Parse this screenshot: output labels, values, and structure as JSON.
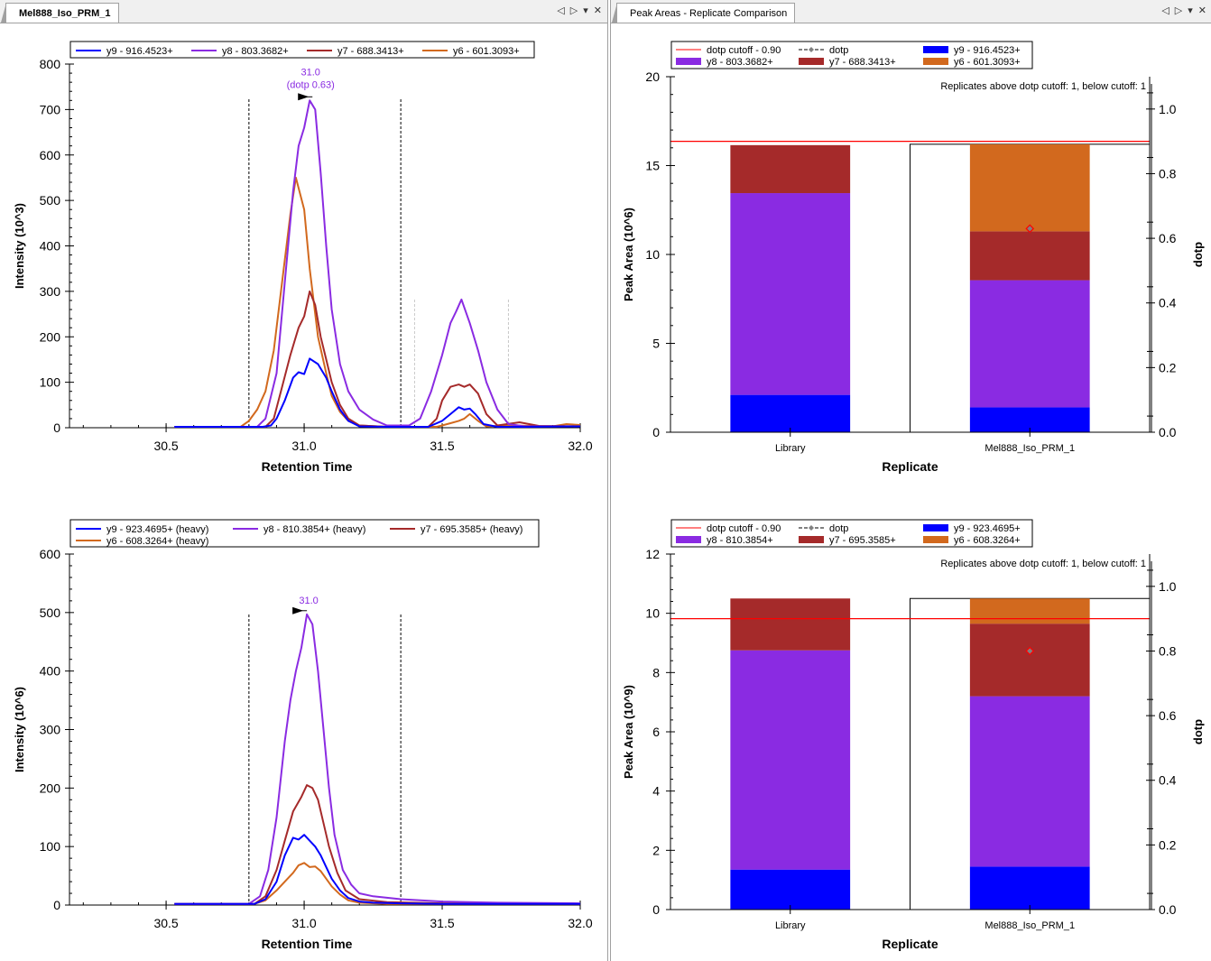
{
  "panes": {
    "left": {
      "tab_label": "Mel888_Iso_PRM_1",
      "controls": {
        "prev": "◁",
        "next": "▷",
        "menu": "▾",
        "close": "✕"
      }
    },
    "right": {
      "tab_label": "Peak Areas - Replicate Comparison",
      "controls": {
        "prev": "◁",
        "next": "▷",
        "menu": "▾",
        "close": "✕"
      }
    }
  },
  "colors": {
    "y9": "#0000ff",
    "y8": "#8a2be2",
    "y7": "#a52a2a",
    "y6": "#d2691e",
    "cutoff": "#ff0000",
    "dotp": "#808080"
  },
  "chart_data": [
    {
      "id": "chrom-light",
      "type": "line",
      "title": "",
      "xlabel": "Retention Time",
      "ylabel": "Intensity (10^3)",
      "xlim": [
        30.15,
        32.0
      ],
      "ylim": [
        0,
        800
      ],
      "xticks": [
        30.5,
        31.0,
        31.5,
        32.0
      ],
      "xtick_labels": [
        "30.5",
        "31.0",
        "31.5",
        "32.0"
      ],
      "yticks": [
        0,
        100,
        200,
        300,
        400,
        500,
        600,
        700,
        800
      ],
      "ytick_labels": [
        "0",
        "100",
        "200",
        "300",
        "400",
        "500",
        "600",
        "700",
        "800"
      ],
      "legend": [
        "y9 - 916.4523+",
        "y8 - 803.3682+",
        "y7 - 688.3413+",
        "y6 - 601.3093+"
      ],
      "legend_placement": "top",
      "peak_annotation": {
        "text1": "31.0",
        "text2": "(dotp 0.63)",
        "x": 31.03,
        "y": 720
      },
      "boundaries": [
        30.8,
        31.35
      ],
      "secondary_boundaries": [
        31.4,
        31.74
      ],
      "series": [
        {
          "name": "y9 - 916.4523+",
          "color_key": "y9",
          "x": [
            30.53,
            30.85,
            30.88,
            30.9,
            30.93,
            30.96,
            30.98,
            31.0,
            31.02,
            31.05,
            31.08,
            31.1,
            31.13,
            31.16,
            31.2,
            31.3,
            31.45,
            31.5,
            31.53,
            31.56,
            31.58,
            31.6,
            31.62,
            31.65,
            31.7,
            31.8,
            32.0
          ],
          "y": [
            2,
            2,
            5,
            20,
            60,
            110,
            122,
            118,
            152,
            140,
            110,
            80,
            40,
            15,
            3,
            2,
            2,
            15,
            30,
            45,
            40,
            42,
            30,
            8,
            2,
            2,
            3
          ]
        },
        {
          "name": "y8 - 803.3682+",
          "color_key": "y8",
          "x": [
            30.53,
            30.83,
            30.86,
            30.9,
            30.93,
            30.96,
            30.98,
            31.0,
            31.02,
            31.04,
            31.06,
            31.08,
            31.1,
            31.13,
            31.16,
            31.2,
            31.25,
            31.3,
            31.38,
            31.42,
            31.46,
            31.5,
            31.53,
            31.55,
            31.57,
            31.6,
            31.63,
            31.66,
            31.7,
            31.74,
            31.8,
            32.0
          ],
          "y": [
            2,
            2,
            20,
            120,
            320,
            520,
            620,
            660,
            720,
            700,
            560,
            400,
            260,
            140,
            80,
            40,
            18,
            5,
            5,
            20,
            80,
            160,
            230,
            255,
            282,
            230,
            170,
            100,
            40,
            8,
            3,
            3
          ]
        },
        {
          "name": "y7 - 688.3413+",
          "color_key": "y7",
          "x": [
            30.53,
            30.86,
            30.89,
            30.92,
            30.95,
            30.98,
            31.0,
            31.02,
            31.04,
            31.06,
            31.08,
            31.1,
            31.13,
            31.16,
            31.2,
            31.3,
            31.45,
            31.48,
            31.5,
            31.53,
            31.56,
            31.58,
            31.6,
            31.63,
            31.66,
            31.7,
            31.78,
            31.85,
            32.0
          ],
          "y": [
            2,
            2,
            20,
            90,
            160,
            220,
            245,
            300,
            270,
            200,
            150,
            100,
            50,
            20,
            5,
            2,
            2,
            20,
            60,
            90,
            95,
            90,
            95,
            75,
            30,
            5,
            12,
            4,
            3
          ]
        },
        {
          "name": "y6 - 601.3093+",
          "color_key": "y6",
          "x": [
            30.53,
            30.77,
            30.8,
            30.83,
            30.86,
            30.89,
            30.92,
            30.95,
            30.97,
            31.0,
            31.02,
            31.05,
            31.08,
            31.1,
            31.13,
            31.16,
            31.2,
            31.3,
            31.48,
            31.5,
            31.53,
            31.56,
            31.58,
            31.6,
            31.63,
            31.66,
            31.75,
            31.9,
            31.95,
            32.0
          ],
          "y": [
            2,
            2,
            15,
            40,
            80,
            170,
            320,
            470,
            550,
            480,
            350,
            200,
            120,
            70,
            35,
            15,
            5,
            2,
            2,
            5,
            10,
            15,
            20,
            30,
            15,
            3,
            5,
            3,
            8,
            6
          ]
        }
      ]
    },
    {
      "id": "chrom-heavy",
      "type": "line",
      "title": "",
      "xlabel": "Retention Time",
      "ylabel": "Intensity (10^6)",
      "xlim": [
        30.15,
        32.0
      ],
      "ylim": [
        0,
        600
      ],
      "xticks": [
        30.5,
        31.0,
        31.5,
        32.0
      ],
      "xtick_labels": [
        "30.5",
        "31.0",
        "31.5",
        "32.0"
      ],
      "yticks": [
        0,
        100,
        200,
        300,
        400,
        500,
        600
      ],
      "ytick_labels": [
        "0",
        "100",
        "200",
        "300",
        "400",
        "500",
        "600"
      ],
      "legend": [
        "y9 - 923.4695+ (heavy)",
        "y8 - 810.3854+ (heavy)",
        "y7 - 695.3585+ (heavy)",
        "y6 - 608.3264+ (heavy)"
      ],
      "legend_placement": "top",
      "peak_annotation": {
        "text1": "31.0",
        "text2": "",
        "x": 31.01,
        "y": 497
      },
      "boundaries": [
        30.8,
        31.35
      ],
      "secondary_boundaries": [],
      "series": [
        {
          "name": "y9 - 923.4695+ (heavy)",
          "color_key": "y9",
          "x": [
            30.53,
            30.82,
            30.86,
            30.9,
            30.93,
            30.96,
            30.98,
            31.0,
            31.02,
            31.04,
            31.06,
            31.08,
            31.1,
            31.13,
            31.16,
            31.2,
            31.25,
            31.35,
            31.5,
            32.0
          ],
          "y": [
            2,
            2,
            10,
            40,
            85,
            115,
            112,
            120,
            110,
            100,
            85,
            65,
            45,
            25,
            12,
            6,
            4,
            3,
            2,
            2
          ]
        },
        {
          "name": "y8 - 810.3854+ (heavy)",
          "color_key": "y8",
          "x": [
            30.53,
            30.8,
            30.84,
            30.87,
            30.9,
            30.93,
            30.95,
            30.97,
            30.99,
            31.01,
            31.03,
            31.05,
            31.07,
            31.09,
            31.11,
            31.14,
            31.17,
            31.2,
            31.25,
            31.35,
            31.5,
            31.7,
            32.0
          ],
          "y": [
            2,
            2,
            15,
            60,
            150,
            280,
            350,
            400,
            440,
            497,
            480,
            400,
            300,
            200,
            120,
            60,
            35,
            20,
            15,
            10,
            6,
            4,
            3
          ]
        },
        {
          "name": "y7 - 695.3585+ (heavy)",
          "color_key": "y7",
          "x": [
            30.53,
            30.82,
            30.86,
            30.9,
            30.93,
            30.96,
            30.99,
            31.01,
            31.03,
            31.05,
            31.07,
            31.09,
            31.12,
            31.15,
            31.2,
            31.3,
            31.5,
            32.0
          ],
          "y": [
            2,
            2,
            15,
            60,
            110,
            160,
            185,
            205,
            200,
            180,
            140,
            100,
            55,
            25,
            10,
            5,
            3,
            2
          ]
        },
        {
          "name": "y6 - 608.3264+ (heavy)",
          "color_key": "y6",
          "x": [
            30.53,
            30.82,
            30.86,
            30.9,
            30.93,
            30.96,
            30.98,
            31.0,
            31.02,
            31.04,
            31.06,
            31.08,
            31.1,
            31.13,
            31.16,
            31.2,
            31.3,
            31.5,
            32.0
          ],
          "y": [
            2,
            2,
            8,
            25,
            40,
            55,
            68,
            72,
            65,
            66,
            58,
            45,
            32,
            18,
            8,
            4,
            2,
            2,
            2
          ]
        }
      ]
    },
    {
      "id": "peak-areas-light",
      "type": "bar",
      "stacked": true,
      "title": "",
      "xlabel": "Replicate",
      "ylabel": "Peak Area (10^6)",
      "y2label": "dotp",
      "categories": [
        "Library",
        "Mel888_Iso_PRM_1"
      ],
      "ylim": [
        0,
        20
      ],
      "yticks": [
        0,
        5,
        10,
        15,
        20
      ],
      "ytick_labels": [
        "0",
        "5",
        "10",
        "15",
        "20"
      ],
      "y2lim": [
        0,
        1.1
      ],
      "y2ticks": [
        0.0,
        0.2,
        0.4,
        0.6,
        0.8,
        1.0
      ],
      "y2tick_labels": [
        "0.0",
        "0.2",
        "0.4",
        "0.6",
        "0.8",
        "1.0"
      ],
      "legend": [
        "dotp cutoff - 0.90",
        "dotp",
        "y9 - 916.4523+",
        "y8 - 803.3682+",
        "y7 - 688.3413+",
        "y6 - 601.3093+"
      ],
      "legend_placement": "top-left",
      "annotation": "Replicates above dotp cutoff: 1, below cutoff: 1",
      "dotp_cutoff": 0.9,
      "selected_category": "Mel888_Iso_PRM_1",
      "series": [
        {
          "name": "y9 - 916.4523+",
          "color_key": "y9",
          "values": [
            2.1,
            1.4
          ]
        },
        {
          "name": "y8 - 803.3682+",
          "color_key": "y8",
          "values": [
            11.35,
            7.15
          ]
        },
        {
          "name": "y7 - 688.3413+",
          "color_key": "y7",
          "values": [
            2.7,
            2.75
          ]
        },
        {
          "name": "y6 - 601.3093+",
          "color_key": "y6",
          "values": [
            0.0,
            4.9
          ]
        }
      ],
      "dotp": [
        null,
        0.63
      ]
    },
    {
      "id": "peak-areas-heavy",
      "type": "bar",
      "stacked": true,
      "title": "",
      "xlabel": "Replicate",
      "ylabel": "Peak Area (10^9)",
      "y2label": "dotp",
      "categories": [
        "Library",
        "Mel888_Iso_PRM_1"
      ],
      "ylim": [
        0,
        12
      ],
      "yticks": [
        0,
        2,
        4,
        6,
        8,
        10,
        12
      ],
      "ytick_labels": [
        "0",
        "2",
        "4",
        "6",
        "8",
        "10",
        "12"
      ],
      "y2lim": [
        0,
        1.1
      ],
      "y2ticks": [
        0.0,
        0.2,
        0.4,
        0.6,
        0.8,
        1.0
      ],
      "y2tick_labels": [
        "0.0",
        "0.2",
        "0.4",
        "0.6",
        "0.8",
        "1.0"
      ],
      "legend": [
        "dotp cutoff - 0.90",
        "dotp",
        "y9 - 923.4695+",
        "y8 - 810.3854+",
        "y7 - 695.3585+",
        "y6 - 608.3264+"
      ],
      "legend_placement": "top-left",
      "annotation": "Replicates above dotp cutoff: 1, below cutoff: 1",
      "dotp_cutoff": 0.9,
      "selected_category": "Mel888_Iso_PRM_1",
      "series": [
        {
          "name": "y9 - 923.4695+",
          "color_key": "y9",
          "values": [
            1.35,
            1.45
          ]
        },
        {
          "name": "y8 - 810.3854+",
          "color_key": "y8",
          "values": [
            7.4,
            5.75
          ]
        },
        {
          "name": "y7 - 695.3585+",
          "color_key": "y7",
          "values": [
            1.75,
            2.45
          ]
        },
        {
          "name": "y6 - 608.3264+",
          "color_key": "y6",
          "values": [
            0.0,
            0.85
          ]
        }
      ],
      "dotp": [
        null,
        0.8
      ]
    }
  ]
}
